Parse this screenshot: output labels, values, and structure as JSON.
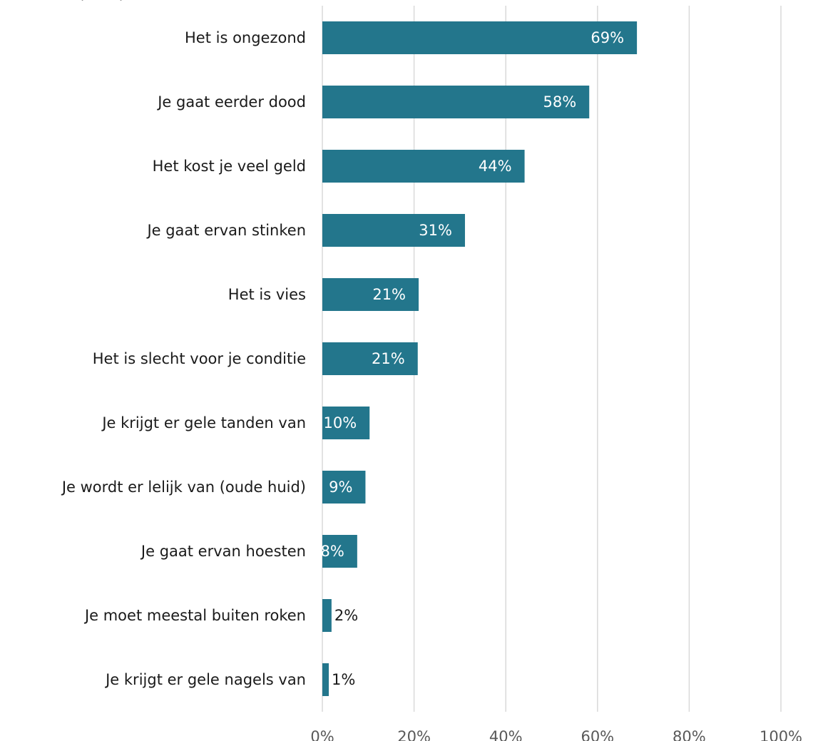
{
  "chart_data": {
    "type": "bar",
    "orientation": "horizontal",
    "title_fragment": "(… …)",
    "categories": [
      "Het is ongezond",
      "Je gaat eerder dood",
      "Het kost je veel geld",
      "Je gaat ervan stinken",
      "Het is vies",
      "Het is slecht voor je conditie",
      "Je krijgt er gele tanden van",
      "Je wordt er lelijk van (oude huid)",
      "Je gaat ervan hoesten",
      "Je moet meestal buiten roken",
      "Je krijgt er gele nagels van"
    ],
    "values": [
      68.6,
      58.2,
      44.1,
      31.1,
      21.0,
      20.8,
      10.3,
      9.4,
      7.6,
      2.0,
      1.4
    ],
    "data_labels": [
      "69%",
      "58%",
      "44%",
      "31%",
      "21%",
      "21%",
      "10%",
      "9%",
      "8%",
      "2%",
      "1%"
    ],
    "xlim": [
      0,
      100
    ],
    "x_ticks": [
      "0%",
      "20%",
      "40%",
      "60%",
      "80%",
      "100%"
    ],
    "x_tick_values": [
      0,
      20,
      40,
      60,
      80,
      100
    ],
    "grid": "vertical",
    "colors": {
      "bar": "#23768c",
      "gridline": "#d9d9d9",
      "label_inside": "#ffffff",
      "label_outside": "#1a1a1a"
    }
  }
}
